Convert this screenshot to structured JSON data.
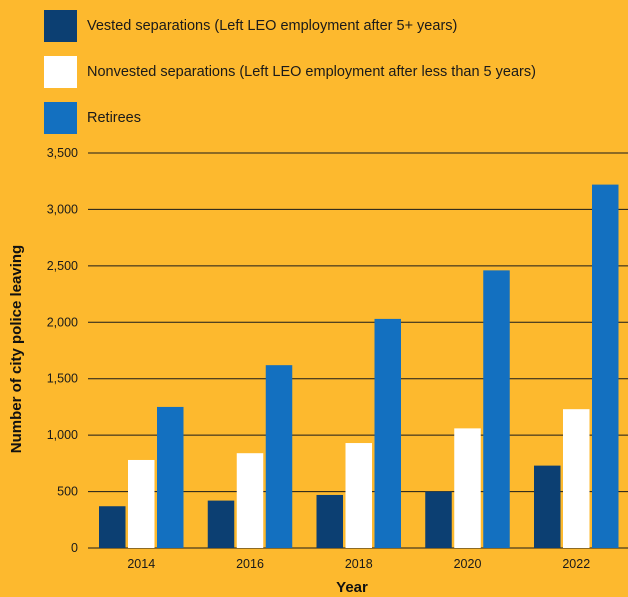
{
  "chart_data": {
    "type": "bar",
    "categories": [
      "2014",
      "2016",
      "2018",
      "2020",
      "2022"
    ],
    "series": [
      {
        "name": "Vested separations (Left LEO employment after 5+ years)",
        "color": "#0C3F72",
        "values": [
          370,
          420,
          470,
          500,
          730
        ]
      },
      {
        "name": "Nonvested separations (Left LEO employment after less than 5 years)",
        "color": "#FFFFFF",
        "values": [
          780,
          840,
          930,
          1060,
          1230
        ]
      },
      {
        "name": "Retirees",
        "color": "#1370C0",
        "values": [
          1250,
          1620,
          2030,
          2460,
          3220
        ]
      }
    ],
    "xlabel": "Year",
    "ylabel": "Number of city police leaving",
    "ylim": [
      0,
      3500
    ],
    "yticks": [
      "0",
      "500",
      "1,000",
      "1,500",
      "2,000",
      "2,500",
      "3,000",
      "3,500"
    ],
    "grid": true,
    "legend_position": "top-left"
  }
}
